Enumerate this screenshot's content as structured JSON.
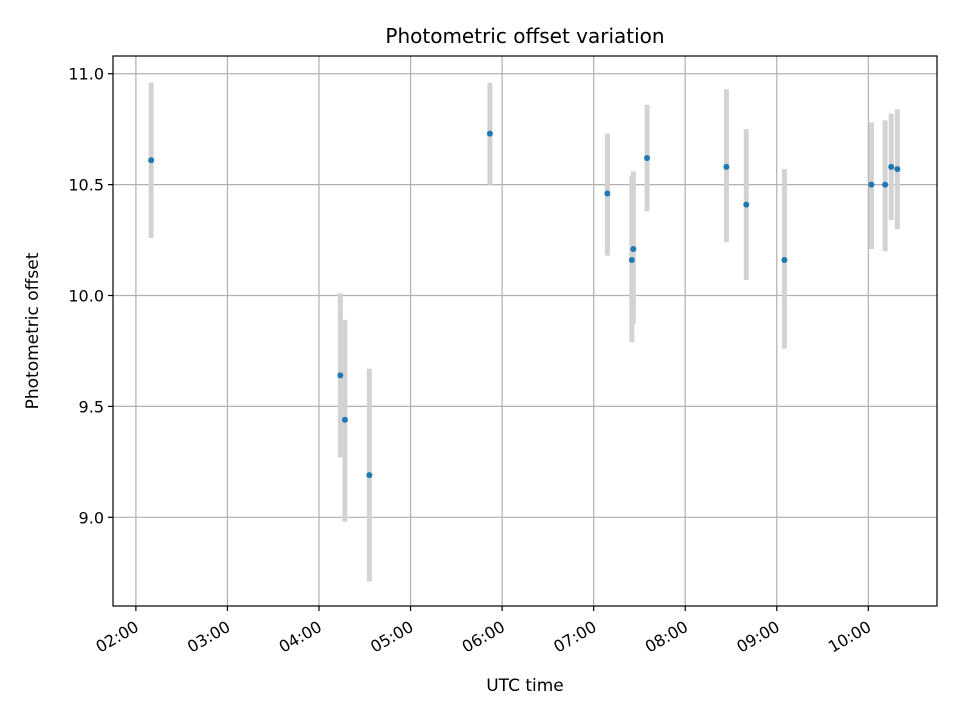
{
  "chart_data": {
    "type": "scatter",
    "title": "Photometric offset variation",
    "xlabel": "UTC time",
    "ylabel": "Photometric offset",
    "xlim": [
      "01:45",
      "10:45"
    ],
    "ylim": [
      8.6,
      11.08
    ],
    "x_ticks": [
      "02:00",
      "03:00",
      "04:00",
      "05:00",
      "06:00",
      "07:00",
      "08:00",
      "09:00",
      "10:00"
    ],
    "y_ticks": [
      "9.0",
      "9.5",
      "10.0",
      "10.5",
      "11.0"
    ],
    "grid": true,
    "colors": {
      "point": "#1f77b4",
      "errorbar": "#d3d3d3",
      "grid": "#b0b0b0"
    },
    "points": [
      {
        "x": "02:10",
        "y": 10.61,
        "y_low": 10.26,
        "y_high": 10.96
      },
      {
        "x": "04:14",
        "y": 9.64,
        "y_low": 9.27,
        "y_high": 10.01
      },
      {
        "x": "04:17",
        "y": 9.44,
        "y_low": 8.98,
        "y_high": 9.89
      },
      {
        "x": "04:33",
        "y": 9.19,
        "y_low": 8.71,
        "y_high": 9.67
      },
      {
        "x": "05:52",
        "y": 10.73,
        "y_low": 10.5,
        "y_high": 10.96
      },
      {
        "x": "07:09",
        "y": 10.46,
        "y_low": 10.18,
        "y_high": 10.73
      },
      {
        "x": "07:25",
        "y": 10.16,
        "y_low": 9.79,
        "y_high": 10.54
      },
      {
        "x": "07:26",
        "y": 10.21,
        "y_low": 9.87,
        "y_high": 10.56
      },
      {
        "x": "07:35",
        "y": 10.62,
        "y_low": 10.38,
        "y_high": 10.86
      },
      {
        "x": "08:27",
        "y": 10.58,
        "y_low": 10.24,
        "y_high": 10.93
      },
      {
        "x": "08:40",
        "y": 10.41,
        "y_low": 10.07,
        "y_high": 10.75
      },
      {
        "x": "09:05",
        "y": 10.16,
        "y_low": 9.76,
        "y_high": 10.57
      },
      {
        "x": "10:02",
        "y": 10.5,
        "y_low": 10.21,
        "y_high": 10.78
      },
      {
        "x": "10:11",
        "y": 10.5,
        "y_low": 10.2,
        "y_high": 10.79
      },
      {
        "x": "10:15",
        "y": 10.58,
        "y_low": 10.34,
        "y_high": 10.82
      },
      {
        "x": "10:19",
        "y": 10.57,
        "y_low": 10.3,
        "y_high": 10.84
      }
    ]
  }
}
